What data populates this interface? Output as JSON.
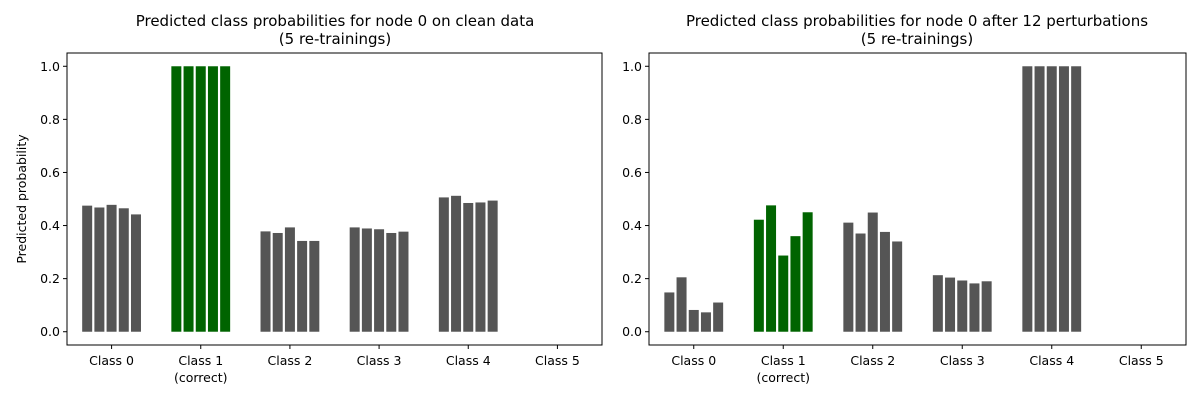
{
  "colors": {
    "default_bar": "#555555",
    "correct_bar": "#006400",
    "axis": "#000000",
    "background": "#ffffff"
  },
  "chart_data": [
    {
      "type": "bar",
      "title_lines": [
        "Predicted class probabilities for node 0 on clean data",
        "(5 re-trainings)"
      ],
      "ylabel": "Predicted probability",
      "xlabel": "",
      "ylim": [
        -0.05,
        1.05
      ],
      "yticks": [
        "0.0",
        "0.2",
        "0.4",
        "0.6",
        "0.8",
        "1.0"
      ],
      "categories": [
        {
          "label": "Class 0",
          "sublabel": ""
        },
        {
          "label": "Class 1",
          "sublabel": "(correct)"
        },
        {
          "label": "Class 2",
          "sublabel": ""
        },
        {
          "label": "Class 3",
          "sublabel": ""
        },
        {
          "label": "Class 4",
          "sublabel": ""
        },
        {
          "label": "Class 5",
          "sublabel": ""
        }
      ],
      "correct_class_index": 1,
      "values": [
        [
          0.475,
          0.468,
          0.478,
          0.465,
          0.442
        ],
        [
          1.0,
          1.0,
          1.0,
          1.0,
          1.0
        ],
        [
          0.378,
          0.372,
          0.393,
          0.342,
          0.342
        ],
        [
          0.393,
          0.389,
          0.386,
          0.372,
          0.377
        ],
        [
          0.506,
          0.512,
          0.485,
          0.487,
          0.494
        ],
        []
      ]
    },
    {
      "type": "bar",
      "title_lines": [
        "Predicted class probabilities for node 0 after 12 perturbations",
        "(5 re-trainings)"
      ],
      "ylabel": "",
      "xlabel": "",
      "ylim": [
        -0.05,
        1.05
      ],
      "yticks": [
        "0.0",
        "0.2",
        "0.4",
        "0.6",
        "0.8",
        "1.0"
      ],
      "categories": [
        {
          "label": "Class 0",
          "sublabel": ""
        },
        {
          "label": "Class 1",
          "sublabel": "(correct)"
        },
        {
          "label": "Class 2",
          "sublabel": ""
        },
        {
          "label": "Class 3",
          "sublabel": ""
        },
        {
          "label": "Class 4",
          "sublabel": ""
        },
        {
          "label": "Class 5",
          "sublabel": ""
        }
      ],
      "correct_class_index": 1,
      "values": [
        [
          0.148,
          0.205,
          0.082,
          0.073,
          0.11
        ],
        [
          0.422,
          0.476,
          0.287,
          0.36,
          0.45
        ],
        [
          0.411,
          0.37,
          0.449,
          0.376,
          0.34
        ],
        [
          0.213,
          0.204,
          0.193,
          0.182,
          0.19
        ],
        [
          1.0,
          1.0,
          1.0,
          1.0,
          1.0
        ],
        []
      ]
    }
  ]
}
